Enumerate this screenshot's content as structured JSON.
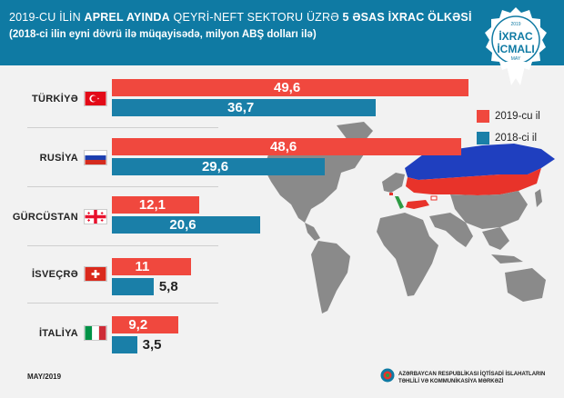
{
  "header": {
    "title_line1_pre": "2019-CU İLİN",
    "title_line1_bold1": "APREL AYINDA",
    "title_line1_mid": "QEYRİ-NEFT SEKTORU ÜZRƏ",
    "title_line1_bold2": "5 ƏSAS İXRAC ÖLKƏSİ",
    "title_line2": "(2018-ci ilin eyni dövrü ilə müqayisədə, milyon ABŞ dolları ilə)"
  },
  "badge": {
    "line1": "İXRAC",
    "line2": "İCMALI",
    "y1": "2019",
    "y2": "MAY"
  },
  "colors": {
    "s2019": "#f0483e",
    "s2018": "#1a7fa8",
    "map": "#8a8a8a",
    "russia_blue": "#1f3fbf",
    "russia_red": "#e8332a"
  },
  "chart_data": {
    "type": "bar",
    "orientation": "horizontal",
    "categories": [
      "TÜRKİYƏ",
      "RUSİYA",
      "GÜRCÜSTAN",
      "İSVEÇRƏ",
      "İTALİYA"
    ],
    "series": [
      {
        "name": "2019-cu il",
        "values": [
          49.6,
          48.6,
          12.1,
          11.0,
          9.2
        ],
        "labels": [
          "49,6",
          "48,6",
          "12,1",
          "11",
          "9,2"
        ]
      },
      {
        "name": "2018-ci il",
        "values": [
          36.7,
          29.6,
          20.6,
          5.8,
          3.5
        ],
        "labels": [
          "36,7",
          "29,6",
          "20,6",
          "5,8",
          "3,5"
        ]
      }
    ],
    "legend": "right"
  },
  "flags": [
    "turkey-flag",
    "russia-flag",
    "georgia-flag",
    "switzerland-flag",
    "italy-flag"
  ],
  "footer": {
    "date": "MAY/2019",
    "org_line1": "AZƏRBAYCAN RESPUBLİKASI İQTİSADİ İSLAHATLARIN",
    "org_line2": "TƏHLİLİ VƏ KOMMUNİKASİYA MƏRKƏZİ"
  }
}
